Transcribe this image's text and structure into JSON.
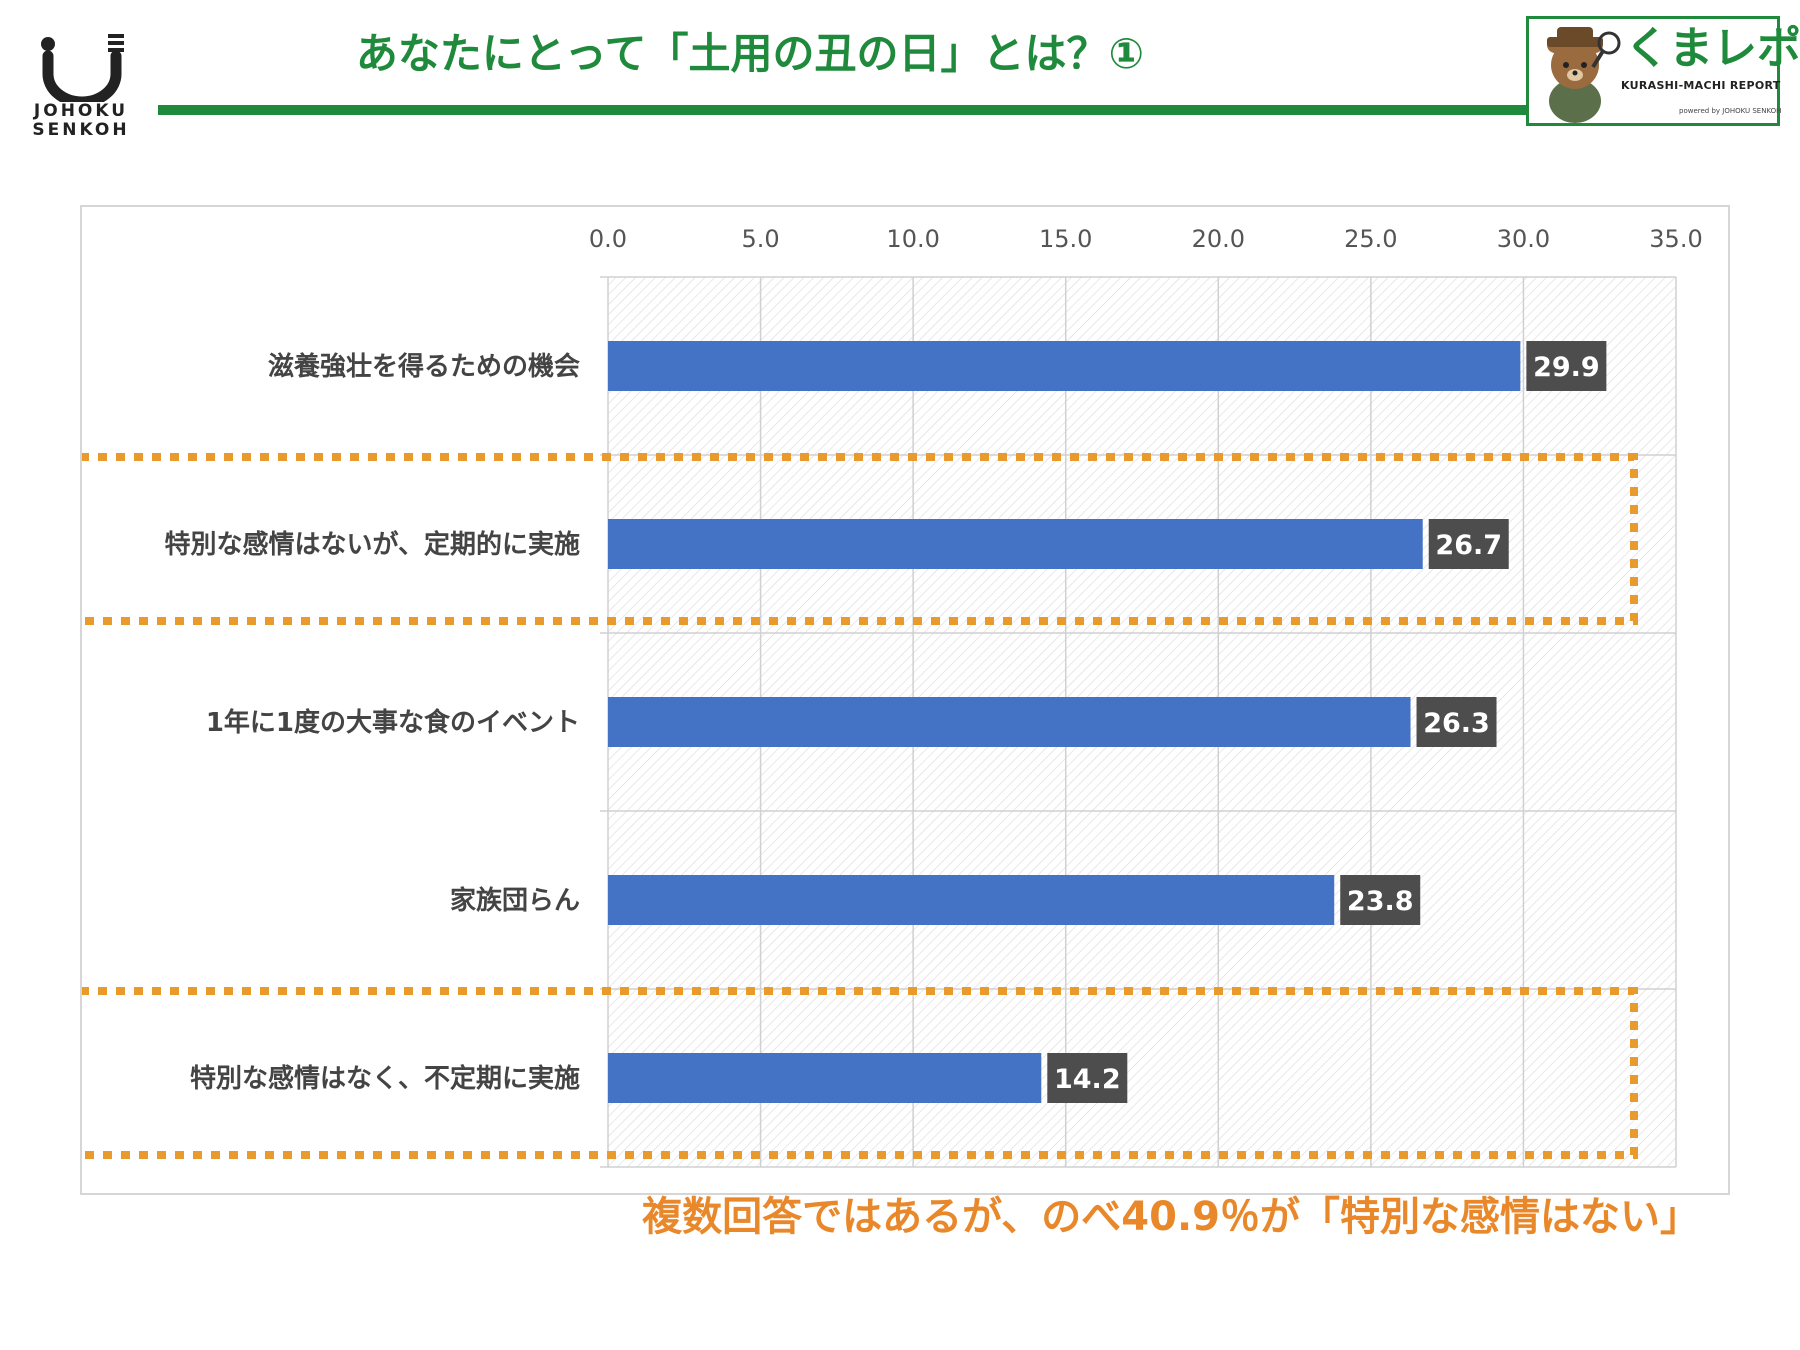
{
  "header": {
    "title": "あなたにとって「土用の丑の日」とは？①",
    "logo_left": {
      "line1": "JOHOKU",
      "line2": "SENKOH"
    },
    "logo_right": {
      "brand": "くまレポ",
      "subtitle": "KURASHI-MACHI REPORT",
      "powered": "powered by JOHOKU SENKOH",
      "icon": "bear-detective-icon"
    }
  },
  "colors": {
    "accent_green": "#1f8a3c",
    "bar": "#4472c4",
    "value_box": "#4d4d4d",
    "highlight": "#e89a2c",
    "annotation": "#e8882a"
  },
  "chart_data": {
    "type": "bar",
    "orientation": "horizontal",
    "categories": [
      "滋養強壮を得るための機会",
      "特別な感情はないが、定期的に実施",
      "1年に1度の大事な食のイベント",
      "家族団らん",
      "特別な感情はなく、不定期に実施"
    ],
    "values": [
      29.9,
      26.7,
      26.3,
      23.8,
      14.2
    ],
    "xlim": [
      0,
      35
    ],
    "xticks": [
      "0.0",
      "5.0",
      "10.0",
      "15.0",
      "20.0",
      "25.0",
      "30.0",
      "35.0"
    ],
    "x_axis_position": "top",
    "grid": true,
    "highlighted_categories": [
      1,
      4
    ]
  },
  "annotation": "複数回答ではあるが、のべ40.9％が「特別な感情はない」"
}
